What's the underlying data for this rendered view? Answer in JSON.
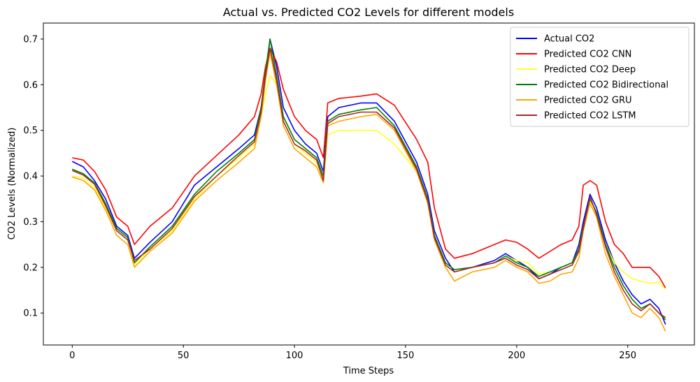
{
  "chart_data": {
    "type": "line",
    "title": "Actual vs. Predicted CO2 Levels for different models",
    "xlabel": "Time Steps",
    "ylabel": "CO2 Levels (Normalized)",
    "xlim": [
      -13,
      280
    ],
    "ylim": [
      0.03,
      0.735
    ],
    "xticks": [
      0,
      50,
      100,
      150,
      200,
      250
    ],
    "yticks": [
      0.1,
      0.2,
      0.3,
      0.4,
      0.5,
      0.6,
      0.7
    ],
    "grid": false,
    "legend_position": "top-right",
    "x": [
      0,
      5,
      10,
      15,
      20,
      25,
      28,
      35,
      45,
      55,
      65,
      75,
      82,
      85,
      87,
      89,
      92,
      95,
      100,
      105,
      110,
      113,
      115,
      120,
      130,
      137,
      145,
      155,
      160,
      163,
      168,
      172,
      180,
      190,
      195,
      200,
      205,
      210,
      215,
      220,
      225,
      228,
      230,
      233,
      236,
      240,
      244,
      248,
      252,
      256,
      260,
      264,
      267
    ],
    "series": [
      {
        "name": "Actual CO2",
        "color": "#0000ff",
        "values": [
          0.432,
          0.42,
          0.39,
          0.35,
          0.29,
          0.27,
          0.22,
          0.255,
          0.3,
          0.38,
          0.42,
          0.46,
          0.49,
          0.55,
          0.62,
          0.7,
          0.64,
          0.55,
          0.5,
          0.47,
          0.45,
          0.41,
          0.53,
          0.55,
          0.56,
          0.56,
          0.52,
          0.43,
          0.36,
          0.28,
          0.22,
          0.19,
          0.2,
          0.215,
          0.23,
          0.215,
          0.2,
          0.175,
          0.185,
          0.2,
          0.21,
          0.25,
          0.3,
          0.36,
          0.33,
          0.26,
          0.21,
          0.17,
          0.14,
          0.12,
          0.13,
          0.11,
          0.075
        ]
      },
      {
        "name": "Predicted CO2 CNN",
        "color": "#ff0000",
        "values": [
          0.44,
          0.435,
          0.41,
          0.37,
          0.31,
          0.29,
          0.25,
          0.29,
          0.33,
          0.4,
          0.445,
          0.49,
          0.53,
          0.58,
          0.64,
          0.68,
          0.65,
          0.59,
          0.53,
          0.5,
          0.48,
          0.44,
          0.56,
          0.57,
          0.575,
          0.58,
          0.555,
          0.48,
          0.43,
          0.33,
          0.24,
          0.22,
          0.23,
          0.25,
          0.26,
          0.255,
          0.24,
          0.22,
          0.235,
          0.25,
          0.26,
          0.29,
          0.38,
          0.39,
          0.38,
          0.3,
          0.25,
          0.23,
          0.2,
          0.2,
          0.2,
          0.18,
          0.155
        ]
      },
      {
        "name": "Predicted CO2 Deep",
        "color": "#ffff26",
        "values": [
          0.4,
          0.395,
          0.375,
          0.33,
          0.28,
          0.26,
          0.205,
          0.24,
          0.28,
          0.35,
          0.4,
          0.44,
          0.47,
          0.53,
          0.58,
          0.62,
          0.6,
          0.52,
          0.47,
          0.45,
          0.43,
          0.39,
          0.49,
          0.5,
          0.5,
          0.5,
          0.47,
          0.41,
          0.35,
          0.27,
          0.205,
          0.19,
          0.2,
          0.21,
          0.225,
          0.215,
          0.21,
          0.185,
          0.19,
          0.2,
          0.21,
          0.24,
          0.29,
          0.345,
          0.32,
          0.25,
          0.21,
          0.19,
          0.175,
          0.17,
          0.165,
          0.168,
          0.152
        ]
      },
      {
        "name": "Predicted CO2 Bidirectional",
        "color": "#008000",
        "values": [
          0.415,
          0.405,
          0.385,
          0.34,
          0.285,
          0.265,
          0.21,
          0.245,
          0.29,
          0.36,
          0.41,
          0.45,
          0.48,
          0.55,
          0.63,
          0.7,
          0.62,
          0.53,
          0.48,
          0.46,
          0.44,
          0.4,
          0.52,
          0.535,
          0.545,
          0.55,
          0.51,
          0.42,
          0.35,
          0.27,
          0.21,
          0.195,
          0.2,
          0.21,
          0.225,
          0.21,
          0.2,
          0.18,
          0.19,
          0.2,
          0.21,
          0.24,
          0.29,
          0.35,
          0.32,
          0.25,
          0.2,
          0.16,
          0.13,
          0.11,
          0.12,
          0.1,
          0.085
        ]
      },
      {
        "name": "Predicted CO2 GRU",
        "color": "#ffa500",
        "values": [
          0.398,
          0.39,
          0.37,
          0.325,
          0.27,
          0.25,
          0.2,
          0.235,
          0.275,
          0.345,
          0.39,
          0.43,
          0.46,
          0.53,
          0.61,
          0.67,
          0.6,
          0.51,
          0.46,
          0.44,
          0.42,
          0.385,
          0.51,
          0.52,
          0.53,
          0.535,
          0.5,
          0.41,
          0.34,
          0.26,
          0.2,
          0.17,
          0.19,
          0.2,
          0.215,
          0.2,
          0.19,
          0.165,
          0.17,
          0.185,
          0.19,
          0.22,
          0.28,
          0.34,
          0.31,
          0.23,
          0.18,
          0.14,
          0.1,
          0.09,
          0.11,
          0.09,
          0.06
        ]
      },
      {
        "name": "Predicted CO2 LSTM",
        "color": "#a52a2a",
        "values": [
          0.412,
          0.402,
          0.382,
          0.335,
          0.28,
          0.26,
          0.215,
          0.24,
          0.285,
          0.355,
          0.4,
          0.445,
          0.475,
          0.54,
          0.62,
          0.68,
          0.61,
          0.52,
          0.47,
          0.455,
          0.435,
          0.39,
          0.515,
          0.53,
          0.54,
          0.54,
          0.505,
          0.415,
          0.345,
          0.265,
          0.205,
          0.19,
          0.2,
          0.21,
          0.22,
          0.205,
          0.195,
          0.175,
          0.185,
          0.195,
          0.205,
          0.235,
          0.285,
          0.355,
          0.315,
          0.245,
          0.19,
          0.15,
          0.12,
          0.105,
          0.12,
          0.1,
          0.09
        ]
      }
    ]
  }
}
